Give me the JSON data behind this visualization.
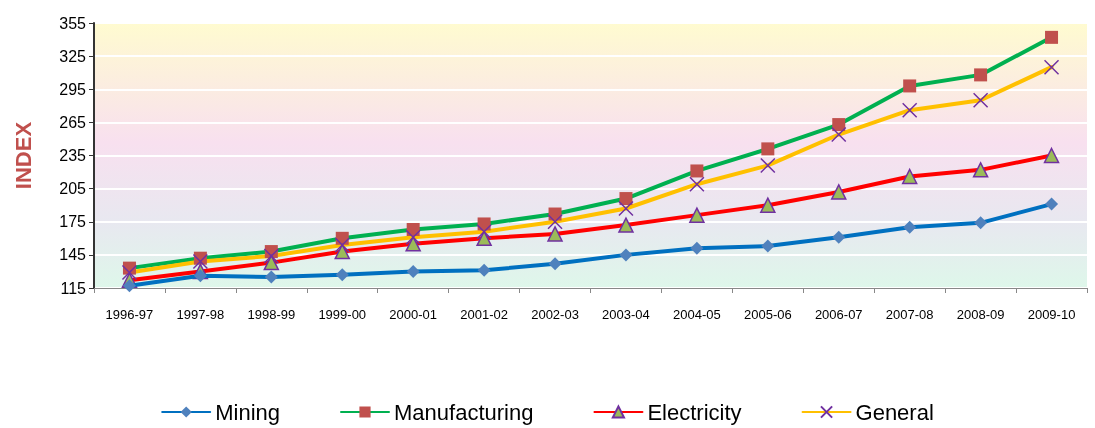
{
  "chart_data": {
    "type": "line",
    "ylabel": "INDEX",
    "categories": [
      "1996-97",
      "1997-98",
      "1998-99",
      "1999-00",
      "2000-01",
      "2001-02",
      "2002-03",
      "2003-04",
      "2004-05",
      "2005-06",
      "2006-07",
      "2007-08",
      "2008-09",
      "2009-10"
    ],
    "series": [
      {
        "name": "Mining",
        "color": "#0070c0",
        "marker": "diamond",
        "values": [
          117,
          126,
          125,
          127,
          130,
          131,
          137,
          145,
          151,
          153,
          161,
          170,
          174,
          191
        ]
      },
      {
        "name": "Manufacturing",
        "color": "#00b050",
        "marker": "square",
        "values": [
          133,
          142,
          148,
          160,
          168,
          173,
          182,
          196,
          221,
          241,
          263,
          298,
          308,
          342
        ]
      },
      {
        "name": "Electricity",
        "color": "#ff0000",
        "marker": "triangle",
        "values": [
          122,
          130,
          138,
          148,
          155,
          160,
          164,
          172,
          181,
          190,
          202,
          216,
          222,
          235
        ]
      },
      {
        "name": "General",
        "color": "#ffc000",
        "marker": "cross",
        "values": [
          129,
          139,
          144,
          154,
          161,
          166,
          175,
          187,
          209,
          226,
          254,
          276,
          285,
          315
        ]
      }
    ],
    "ylim": [
      115,
      355
    ],
    "yticks": [
      115,
      145,
      175,
      205,
      235,
      265,
      295,
      325,
      355
    ],
    "grid": "y",
    "legend": "bottom"
  }
}
